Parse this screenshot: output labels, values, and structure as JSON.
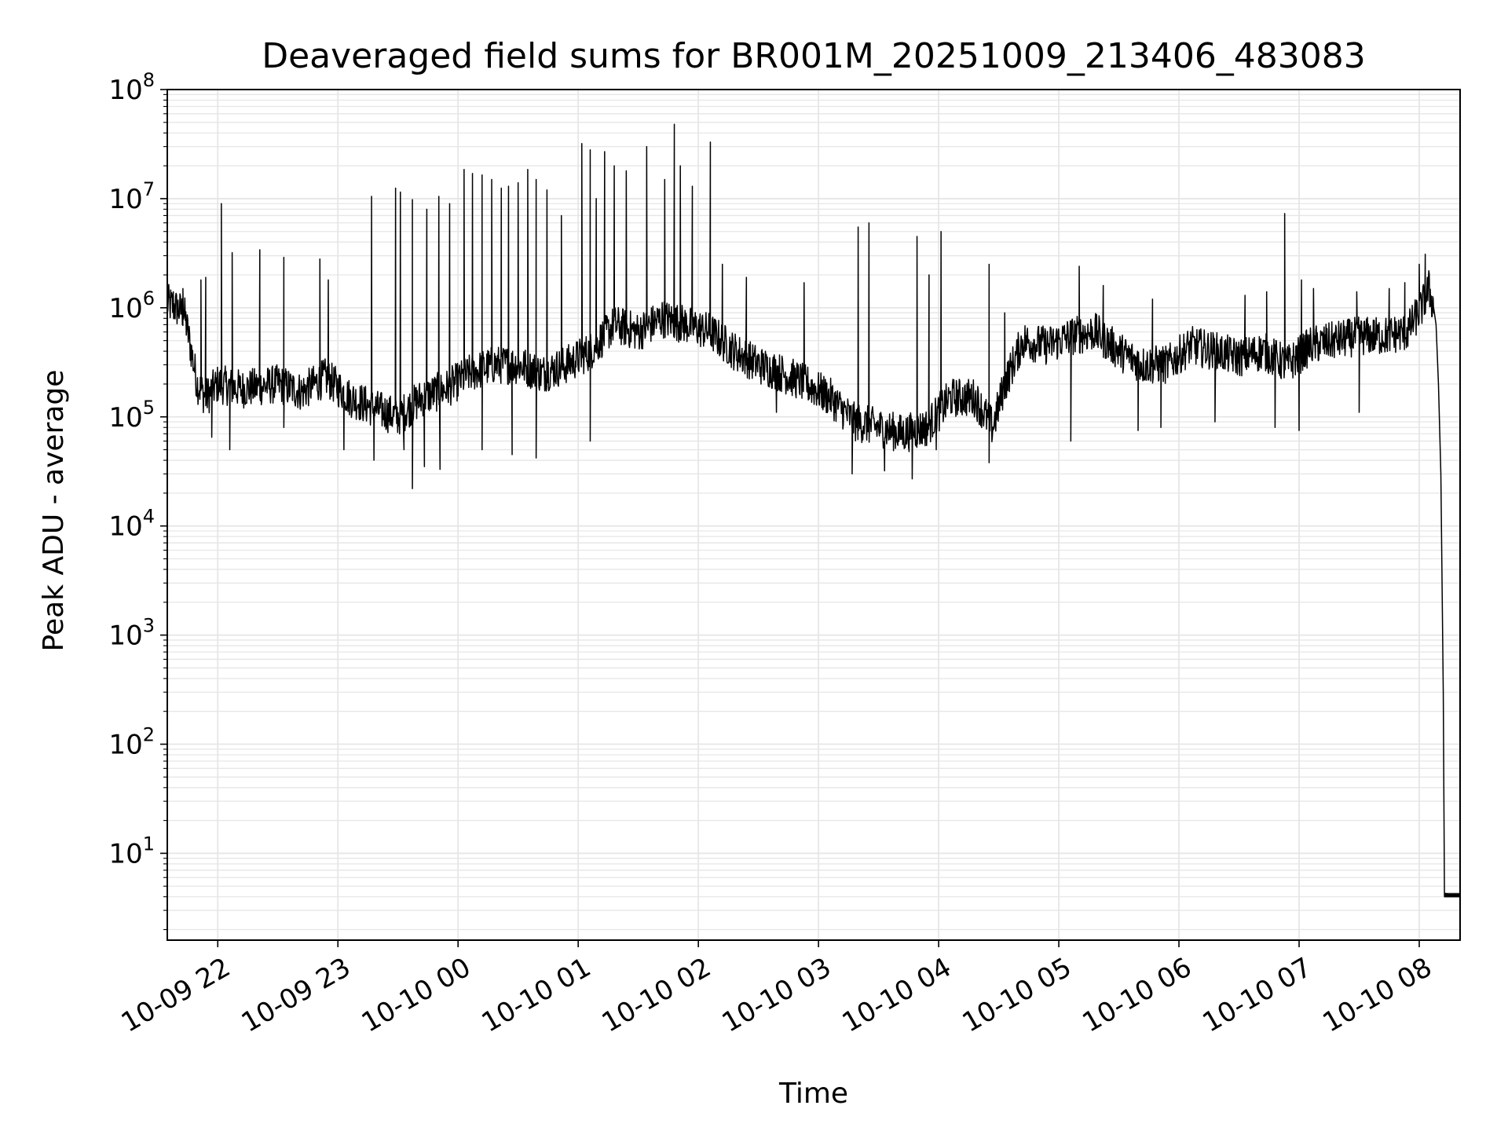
{
  "chart_data": {
    "type": "line",
    "title": "Deaveraged field sums for BR001M_20251009_213406_483083",
    "xlabel": "Time",
    "ylabel": "Peak ADU - average",
    "yscale": "log",
    "ylim": [
      1.6,
      100000000
    ],
    "x_unit": "hours since 2025-10-09 21:00",
    "xlim": [
      0.58,
      11.34
    ],
    "grid": "on",
    "line_color": "#000000",
    "background": "#ffffff",
    "x_ticks": [
      {
        "value": 1,
        "label": "10-09 22"
      },
      {
        "value": 2,
        "label": "10-09 23"
      },
      {
        "value": 3,
        "label": "10-10 00"
      },
      {
        "value": 4,
        "label": "10-10 01"
      },
      {
        "value": 5,
        "label": "10-10 02"
      },
      {
        "value": 6,
        "label": "10-10 03"
      },
      {
        "value": 7,
        "label": "10-10 04"
      },
      {
        "value": 8,
        "label": "10-10 05"
      },
      {
        "value": 9,
        "label": "10-10 06"
      },
      {
        "value": 10,
        "label": "10-10 07"
      },
      {
        "value": 11,
        "label": "10-10 08"
      }
    ],
    "y_ticks": [
      {
        "value": 10,
        "base": "10",
        "exp": "1"
      },
      {
        "value": 100,
        "base": "10",
        "exp": "2"
      },
      {
        "value": 1000,
        "base": "10",
        "exp": "3"
      },
      {
        "value": 10000,
        "base": "10",
        "exp": "4"
      },
      {
        "value": 100000,
        "base": "10",
        "exp": "5"
      },
      {
        "value": 1000000,
        "base": "10",
        "exp": "6"
      },
      {
        "value": 10000000,
        "base": "10",
        "exp": "7"
      },
      {
        "value": 100000000,
        "base": "10",
        "exp": "8"
      }
    ],
    "series": [
      {
        "name": "Peak ADU - average",
        "baseline": [
          [
            0.58,
            1100000
          ],
          [
            0.65,
            1000000
          ],
          [
            0.72,
            900000
          ],
          [
            0.78,
            400000
          ],
          [
            0.83,
            200000
          ],
          [
            0.9,
            150000
          ],
          [
            1.0,
            200000
          ],
          [
            1.2,
            180000
          ],
          [
            1.5,
            200000
          ],
          [
            1.7,
            170000
          ],
          [
            1.9,
            230000
          ],
          [
            2.1,
            150000
          ],
          [
            2.3,
            120000
          ],
          [
            2.5,
            100000
          ],
          [
            2.7,
            150000
          ],
          [
            2.9,
            180000
          ],
          [
            3.1,
            250000
          ],
          [
            3.3,
            300000
          ],
          [
            3.5,
            300000
          ],
          [
            3.7,
            250000
          ],
          [
            3.9,
            300000
          ],
          [
            4.1,
            400000
          ],
          [
            4.3,
            700000
          ],
          [
            4.5,
            600000
          ],
          [
            4.7,
            800000
          ],
          [
            4.9,
            700000
          ],
          [
            5.1,
            600000
          ],
          [
            5.3,
            400000
          ],
          [
            5.5,
            300000
          ],
          [
            5.7,
            250000
          ],
          [
            5.9,
            200000
          ],
          [
            6.1,
            150000
          ],
          [
            6.3,
            90000
          ],
          [
            6.5,
            80000
          ],
          [
            6.7,
            70000
          ],
          [
            6.9,
            80000
          ],
          [
            7.1,
            150000
          ],
          [
            7.3,
            150000
          ],
          [
            7.45,
            80000
          ],
          [
            7.55,
            200000
          ],
          [
            7.7,
            500000
          ],
          [
            7.9,
            450000
          ],
          [
            8.1,
            550000
          ],
          [
            8.3,
            600000
          ],
          [
            8.5,
            400000
          ],
          [
            8.7,
            300000
          ],
          [
            8.9,
            300000
          ],
          [
            9.1,
            450000
          ],
          [
            9.3,
            400000
          ],
          [
            9.5,
            350000
          ],
          [
            9.7,
            400000
          ],
          [
            9.9,
            300000
          ],
          [
            10.1,
            450000
          ],
          [
            10.3,
            500000
          ],
          [
            10.5,
            550000
          ],
          [
            10.7,
            550000
          ],
          [
            10.9,
            600000
          ],
          [
            11.02,
            1000000
          ],
          [
            11.08,
            1500000
          ],
          [
            11.12,
            1000000
          ]
        ],
        "noise_decades": 0.18,
        "spikes": [
          [
            0.63,
            1400000
          ],
          [
            0.71,
            1500000
          ],
          [
            0.86,
            1800000
          ],
          [
            0.9,
            1900000
          ],
          [
            1.03,
            9000000
          ],
          [
            1.12,
            3200000
          ],
          [
            1.35,
            3400000
          ],
          [
            1.55,
            2900000
          ],
          [
            1.85,
            2800000
          ],
          [
            1.92,
            1800000
          ],
          [
            2.28,
            10500000
          ],
          [
            2.48,
            12500000
          ],
          [
            2.52,
            11500000
          ],
          [
            2.62,
            9800000
          ],
          [
            2.74,
            8000000
          ],
          [
            2.84,
            10500000
          ],
          [
            2.93,
            9000000
          ],
          [
            3.05,
            18500000
          ],
          [
            3.12,
            17000000
          ],
          [
            3.2,
            16500000
          ],
          [
            3.28,
            15000000
          ],
          [
            3.36,
            12500000
          ],
          [
            3.42,
            13000000
          ],
          [
            3.5,
            14000000
          ],
          [
            3.58,
            18500000
          ],
          [
            3.65,
            15000000
          ],
          [
            3.74,
            12000000
          ],
          [
            3.86,
            7000000
          ],
          [
            4.03,
            32000000
          ],
          [
            4.1,
            28000000
          ],
          [
            4.15,
            10000000
          ],
          [
            4.22,
            27000000
          ],
          [
            4.3,
            20000000
          ],
          [
            4.4,
            18000000
          ],
          [
            4.57,
            30000000
          ],
          [
            4.72,
            15000000
          ],
          [
            4.8,
            48000000
          ],
          [
            4.85,
            20000000
          ],
          [
            4.95,
            13000000
          ],
          [
            5.1,
            33000000
          ],
          [
            5.2,
            2500000
          ],
          [
            5.4,
            1900000
          ],
          [
            5.88,
            1700000
          ],
          [
            6.33,
            5500000
          ],
          [
            6.42,
            6000000
          ],
          [
            6.82,
            4500000
          ],
          [
            6.92,
            2000000
          ],
          [
            7.02,
            5000000
          ],
          [
            7.42,
            2500000
          ],
          [
            7.55,
            900000
          ],
          [
            8.17,
            2400000
          ],
          [
            8.37,
            1600000
          ],
          [
            8.78,
            1200000
          ],
          [
            9.55,
            1300000
          ],
          [
            9.73,
            1400000
          ],
          [
            9.88,
            7300000
          ],
          [
            10.02,
            1800000
          ],
          [
            10.12,
            1500000
          ],
          [
            10.48,
            1400000
          ],
          [
            10.75,
            1500000
          ],
          [
            10.88,
            1700000
          ],
          [
            11.0,
            2500000
          ],
          [
            11.05,
            3100000
          ]
        ],
        "dips": [
          [
            0.95,
            65000
          ],
          [
            1.1,
            50000
          ],
          [
            1.55,
            80000
          ],
          [
            2.05,
            50000
          ],
          [
            2.3,
            40000
          ],
          [
            2.55,
            50000
          ],
          [
            2.62,
            22000
          ],
          [
            2.72,
            35000
          ],
          [
            2.85,
            33000
          ],
          [
            3.2,
            50000
          ],
          [
            3.45,
            45000
          ],
          [
            3.65,
            42000
          ],
          [
            4.1,
            60000
          ],
          [
            5.65,
            110000
          ],
          [
            6.28,
            30000
          ],
          [
            6.55,
            32000
          ],
          [
            6.78,
            27000
          ],
          [
            6.98,
            50000
          ],
          [
            7.42,
            38000
          ],
          [
            8.1,
            60000
          ],
          [
            8.66,
            75000
          ],
          [
            8.85,
            80000
          ],
          [
            9.3,
            90000
          ],
          [
            9.8,
            80000
          ],
          [
            10.0,
            75000
          ],
          [
            10.5,
            110000
          ]
        ],
        "tail": [
          [
            11.12,
            1000000
          ],
          [
            11.14,
            700000
          ],
          [
            11.16,
            200000
          ],
          [
            11.18,
            30000
          ],
          [
            11.2,
            300
          ],
          [
            11.21,
            4
          ],
          [
            11.34,
            4
          ]
        ]
      }
    ]
  }
}
